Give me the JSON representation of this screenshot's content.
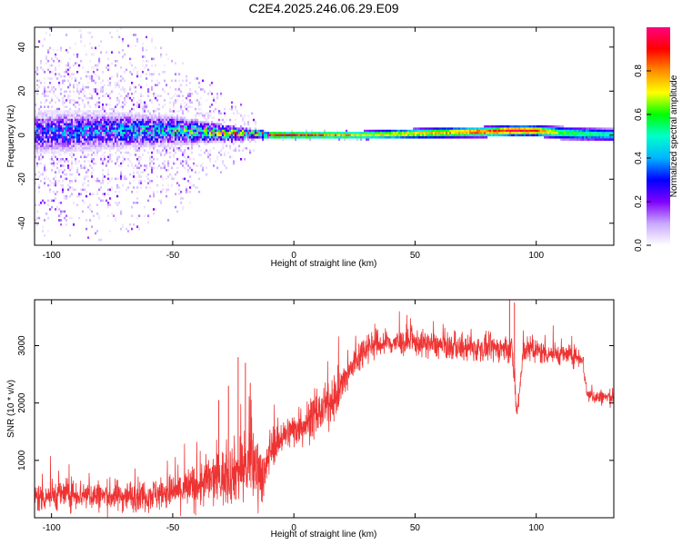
{
  "page_title": "C2E4.2025.246.06.29.E09",
  "chart_data": [
    {
      "type": "heatmap",
      "xlabel": "Height of straight line (km)",
      "ylabel": "Frequency (Hz)",
      "xlim": [
        -107,
        132
      ],
      "ylim": [
        -50,
        49
      ],
      "xticks": [
        -100,
        -50,
        0,
        50,
        100
      ],
      "yticks": [
        -40,
        -20,
        0,
        20,
        40
      ],
      "xtick_labels": [
        "-100",
        "-50",
        "0",
        "50",
        "100"
      ],
      "ytick_labels": [
        "-40",
        "-20",
        "0",
        "20",
        "40"
      ],
      "colorbar": {
        "label": "Normalized spectral amplitude",
        "range": [
          0,
          1
        ],
        "ticks": [
          0.0,
          0.2,
          0.4,
          0.6,
          0.8
        ],
        "tick_labels": [
          "0.0",
          "0.2",
          "0.4",
          "0.6",
          "0.8"
        ],
        "colors": [
          "#ffffff",
          "#c9a8ff",
          "#8000ff",
          "#0000ff",
          "#00b4ff",
          "#00ffcc",
          "#00ff00",
          "#ffff00",
          "#ff8c00",
          "#ff0000",
          "#ff0080"
        ]
      },
      "band_profile": {
        "x": [
          -107,
          -80,
          -50,
          -30,
          -15,
          -10,
          0,
          10,
          30,
          60,
          80,
          90,
          100,
          110,
          132
        ],
        "center_hz": [
          1,
          2,
          2,
          1,
          0.5,
          0,
          0,
          0,
          0,
          1,
          1.5,
          2,
          2,
          1,
          0
        ],
        "halfwidth_hz": [
          10,
          9,
          7,
          4,
          2,
          1.5,
          1.5,
          1.5,
          2,
          2.5,
          2.5,
          2.5,
          2.5,
          3,
          3
        ],
        "peak_amplitude": [
          0.3,
          0.35,
          0.45,
          0.6,
          0.8,
          0.9,
          0.9,
          0.85,
          0.7,
          0.75,
          0.85,
          0.95,
          0.9,
          0.6,
          0.5
        ],
        "scatter_halfwidth_hz": [
          50,
          50,
          40,
          20,
          8,
          2,
          2,
          2,
          2,
          2,
          2,
          2,
          2,
          2,
          2
        ]
      }
    },
    {
      "type": "line",
      "xlabel": "Height of straight line (km)",
      "ylabel": "SNR (10 * v/v)",
      "xlim": [
        -107,
        132
      ],
      "ylim": [
        0,
        3800
      ],
      "xticks": [
        -100,
        -50,
        0,
        50,
        100
      ],
      "yticks": [
        1000,
        2000,
        3000
      ],
      "xtick_labels": [
        "-100",
        "-50",
        "0",
        "50",
        "100"
      ],
      "ytick_labels": [
        "1000",
        "2000",
        "3000"
      ],
      "series": [
        {
          "name": "SNR",
          "color": "#ee3333",
          "x": [
            -107,
            -100,
            -90,
            -80,
            -70,
            -60,
            -50,
            -45,
            -40,
            -35,
            -30,
            -25,
            -20,
            -15,
            -12,
            -10,
            -5,
            0,
            5,
            10,
            15,
            20,
            25,
            30,
            40,
            50,
            60,
            70,
            80,
            90,
            92,
            95,
            100,
            110,
            119,
            121,
            125,
            132
          ],
          "mean": [
            350,
            400,
            420,
            380,
            380,
            400,
            450,
            500,
            550,
            650,
            700,
            800,
            900,
            900,
            700,
            1200,
            1400,
            1550,
            1650,
            1800,
            2000,
            2300,
            2700,
            3000,
            3050,
            3050,
            3000,
            2950,
            2950,
            2950,
            1800,
            2950,
            2900,
            2850,
            2800,
            2150,
            2100,
            2100
          ],
          "noise_amplitude": [
            300,
            300,
            300,
            300,
            300,
            300,
            350,
            400,
            450,
            500,
            550,
            600,
            700,
            700,
            500,
            400,
            300,
            350,
            400,
            400,
            400,
            400,
            350,
            300,
            250,
            250,
            250,
            250,
            250,
            250,
            250,
            250,
            250,
            200,
            200,
            150,
            150,
            150
          ],
          "spikes": [
            [
              -23,
              2800
            ],
            [
              -20,
              2700
            ],
            [
              -31,
              2050
            ],
            [
              -27,
              2300
            ],
            [
              -18,
              2350
            ],
            [
              30,
              2900
            ],
            [
              89,
              3800
            ],
            [
              91,
              3750
            ]
          ]
        }
      ]
    }
  ]
}
